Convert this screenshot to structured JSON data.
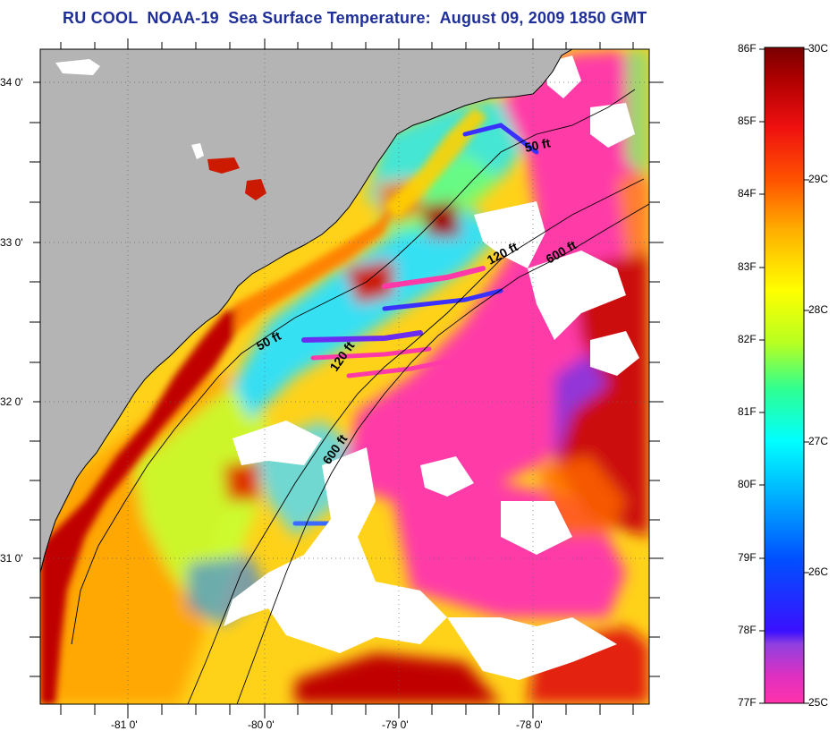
{
  "title": "RU COOL  NOAA-19  Sea Surface Temperature:  August 09, 2009 1850 GMT",
  "map": {
    "lon_range": [
      -81.65,
      -77.1
    ],
    "lat_range": [
      30.1,
      34.2
    ],
    "lat_ticks": [
      {
        "value": 34,
        "label": "34 0'"
      },
      {
        "value": 33,
        "label": "33 0'"
      },
      {
        "value": 32,
        "label": "32 0'"
      },
      {
        "value": 31,
        "label": "31 0'"
      }
    ],
    "lon_ticks": [
      {
        "value": -81,
        "label": "-81 0'"
      },
      {
        "value": -80,
        "label": "-80 0'"
      },
      {
        "value": -79,
        "label": "-79 0'"
      },
      {
        "value": -78,
        "label": "-78 0'"
      }
    ],
    "depth_contours": [
      {
        "label": "50 ft"
      },
      {
        "label": "50 ft"
      },
      {
        "label": "120 ft"
      },
      {
        "label": "120 ft"
      },
      {
        "label": "600 ft"
      },
      {
        "label": "600 ft"
      }
    ],
    "colors": {
      "land": "#b4b4b4",
      "cloud": "#ffffff",
      "coast": "#000000"
    }
  },
  "colorbar": {
    "fahrenheit": [
      "86F",
      "85F",
      "84F",
      "83F",
      "82F",
      "81F",
      "80F",
      "79F",
      "78F",
      "77F"
    ],
    "celsius": [
      "30C",
      "29C",
      "28C",
      "27C",
      "26C",
      "25C"
    ],
    "colors": [
      "#ff33aa",
      "#b040d0",
      "#3a10ff",
      "#0050ff",
      "#00b4ff",
      "#00ffff",
      "#30ff90",
      "#b8ff20",
      "#ffff00",
      "#ffb000",
      "#ff5000",
      "#ee1010",
      "#b00000",
      "#7a0000"
    ]
  }
}
